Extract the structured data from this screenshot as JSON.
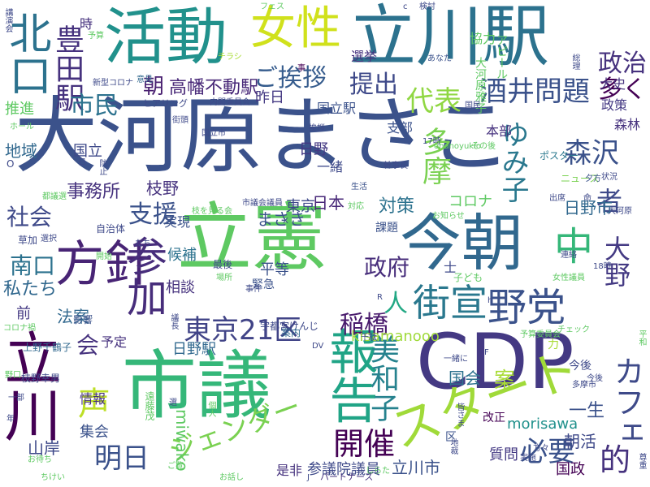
{
  "wordcloud": {
    "words": [
      {
        "text": "大河原まさこ",
        "color": "#3b528b"
      },
      {
        "text": "立憲",
        "color": "#5ec962"
      },
      {
        "text": "市議",
        "color": "#35b779"
      },
      {
        "text": "CDP",
        "color": "#443983"
      },
      {
        "text": "今朝",
        "color": "#31688e"
      },
      {
        "text": "立川駅",
        "color": "#2c728e"
      },
      {
        "text": "活動",
        "color": "#21918c"
      },
      {
        "text": "報告",
        "color": "#20a486"
      },
      {
        "text": "スタート",
        "color": "#a0da39"
      },
      {
        "text": "方針",
        "color": "#482475"
      },
      {
        "text": "立川",
        "color": "#440154"
      },
      {
        "text": "女性",
        "color": "#d0e11c"
      },
      {
        "text": "北口",
        "color": "#2c728e"
      },
      {
        "text": "参加",
        "color": "#472d7b"
      },
      {
        "text": "中",
        "color": "#35b779"
      },
      {
        "text": "野党",
        "color": "#3b528b"
      },
      {
        "text": "街宣",
        "color": "#2a788e"
      },
      {
        "text": "東京21区",
        "color": "#414487"
      },
      {
        "text": "ジェンダー",
        "color": "#7ad151"
      },
      {
        "text": "開催",
        "color": "#440154"
      },
      {
        "text": "必要",
        "color": "#3b528b"
      },
      {
        "text": "美和子",
        "color": "#26828e"
      },
      {
        "text": "声",
        "color": "#bddf26"
      },
      {
        "text": "カフェ",
        "color": "#3e4a89"
      },
      {
        "text": "豊田駅",
        "color": "#46327e"
      },
      {
        "text": "朝",
        "color": "#481f70"
      },
      {
        "text": "高幡不動駅",
        "color": "#482878"
      },
      {
        "text": "ご挨拶",
        "color": "#365c8d"
      },
      {
        "text": "提出",
        "color": "#3e4989"
      },
      {
        "text": "酒井問題",
        "color": "#3b528b"
      },
      {
        "text": "政治",
        "color": "#46327e"
      },
      {
        "text": "多く",
        "color": "#440154"
      },
      {
        "text": "代表",
        "color": "#90d743"
      },
      {
        "text": "市民",
        "color": "#2c728e"
      },
      {
        "text": "森沢",
        "color": "#3b528b"
      },
      {
        "text": "ゆみ子",
        "color": "#2a788e"
      },
      {
        "text": "多摩",
        "color": "#7ad151"
      },
      {
        "text": "大野",
        "color": "#443a83"
      },
      {
        "text": "者",
        "color": "#3e4989"
      },
      {
        "text": "社会",
        "color": "#3e4989"
      },
      {
        "text": "事務所",
        "color": "#46327e"
      },
      {
        "text": "支援",
        "color": "#3b528b"
      },
      {
        "text": "南口",
        "color": "#2c728e"
      },
      {
        "text": "政府",
        "color": "#472d7b"
      },
      {
        "text": "稲橋",
        "color": "#481a6c"
      },
      {
        "text": "人",
        "color": "#22a884"
      },
      {
        "text": "明日",
        "color": "#3b528b"
      },
      {
        "text": "的",
        "color": "#46327e"
      },
      {
        "text": "会",
        "color": "#46327e"
      },
      {
        "text": "miwako",
        "color": "#5ec962"
      },
      {
        "text": "morisawa",
        "color": "#21918c"
      },
      {
        "text": "kisamanooo",
        "color": "#9fda3a"
      },
      {
        "text": "案",
        "color": "#a8db34"
      },
      {
        "text": "まさき",
        "color": "#3b528b"
      },
      {
        "text": "日本",
        "color": "#482878"
      },
      {
        "text": "東京",
        "color": "#3e4989"
      },
      {
        "text": "コロナ",
        "color": "#5ec962"
      },
      {
        "text": "日野市",
        "color": "#31688e"
      },
      {
        "text": "対策",
        "color": "#2c728e"
      },
      {
        "text": "国会",
        "color": "#2c728e"
      },
      {
        "text": "一生",
        "color": "#3b528b"
      },
      {
        "text": "朝活",
        "color": "#3e4989"
      },
      {
        "text": "国政",
        "color": "#440154"
      },
      {
        "text": "立川市",
        "color": "#3b528b"
      },
      {
        "text": "参議院議員",
        "color": "#3e4989"
      },
      {
        "text": "是非",
        "color": "#46327e"
      },
      {
        "text": "質問",
        "color": "#443983"
      },
      {
        "text": "山岸",
        "color": "#3e4989"
      },
      {
        "text": "集会",
        "color": "#3b528b"
      },
      {
        "text": "情報",
        "color": "#46327e"
      },
      {
        "text": "予定",
        "color": "#46327e"
      },
      {
        "text": "法案",
        "color": "#31688e"
      },
      {
        "text": "私たち",
        "color": "#31688e"
      },
      {
        "text": "前",
        "color": "#443983"
      },
      {
        "text": "日野駅",
        "color": "#31688e"
      },
      {
        "text": "平等",
        "color": "#3b528b"
      },
      {
        "text": "相談",
        "color": "#46327e"
      },
      {
        "text": "候補",
        "color": "#2c728e"
      },
      {
        "text": "実現",
        "color": "#3b528b"
      },
      {
        "text": "枝野",
        "color": "#46327e"
      },
      {
        "text": "地域",
        "color": "#31688e"
      },
      {
        "text": "推進",
        "color": "#5ec962"
      },
      {
        "text": "国立",
        "color": "#3e4989"
      },
      {
        "text": "国立駅",
        "color": "#3b528b"
      },
      {
        "text": "昨日",
        "color": "#443983"
      },
      {
        "text": "一緒",
        "color": "#3e4989"
      },
      {
        "text": "日野",
        "color": "#443983"
      },
      {
        "text": "本部",
        "color": "#46327e"
      },
      {
        "text": "支部",
        "color": "#3b528b"
      },
      {
        "text": "大史",
        "color": "#46327e"
      },
      {
        "text": "政策",
        "color": "#443983"
      },
      {
        "text": "森林",
        "color": "#46327e"
      },
      {
        "text": "協力",
        "color": "#5ec962"
      },
      {
        "text": "選挙",
        "color": "#46327e"
      },
      {
        "text": "アピール",
        "color": "#5ec962"
      },
      {
        "text": "大河原雅子",
        "color": "#5ec962"
      },
      {
        "text": "時",
        "color": "#46327e"
      },
      {
        "text": "ポスター",
        "color": "#2a788e"
      },
      {
        "text": "ニュース",
        "color": "#7ad151"
      },
      {
        "text": "宇都宮けんじ",
        "color": "#3e4989"
      },
      {
        "text": "遠藤茂",
        "color": "#5ec962"
      },
      {
        "text": "上野千鶴子",
        "color": "#31688e"
      },
      {
        "text": "枝野幸男",
        "color": "#3e4989"
      },
      {
        "text": "パートナーズ",
        "color": "#46327e"
      },
      {
        "text": "区",
        "color": "#3b528b"
      },
      {
        "text": "改正",
        "color": "#440154"
      },
      {
        "text": "今後",
        "color": "#3e4989"
      },
      {
        "text": "力",
        "color": "#a8db34"
      },
      {
        "text": "士",
        "color": "#3e4989"
      },
      {
        "text": "課題",
        "color": "#3b528b"
      },
      {
        "text": "緊急",
        "color": "#3b528b"
      },
      {
        "text": "子ども",
        "color": "#5ec962"
      },
      {
        "text": "最後",
        "color": "#3e4989"
      },
      {
        "text": "影響",
        "color": "#3b528b"
      },
      {
        "text": "案内",
        "color": "#31688e"
      },
      {
        "text": "自治体",
        "color": "#3e4989"
      },
      {
        "text": "草加",
        "color": "#3e4989"
      },
      {
        "text": "ヒアリング",
        "color": "#3e4989"
      },
      {
        "text": "内閣委員会",
        "color": "#3e4989"
      },
      {
        "text": "新型コロナ",
        "color": "#3e4989"
      },
      {
        "text": "チラシ",
        "color": "#a8db34"
      },
      {
        "text": "意見",
        "color": "#31688e"
      },
      {
        "text": "あなた",
        "color": "#3b528b"
      },
      {
        "text": "検討",
        "color": "#3e4989"
      },
      {
        "text": "フェス",
        "color": "#5ec962"
      },
      {
        "text": "事",
        "color": "#440154"
      },
      {
        "text": "予算",
        "color": "#5ec962"
      },
      {
        "text": "ホール",
        "color": "#5ec962"
      },
      {
        "text": "都議選",
        "color": "#5ec962"
      },
      {
        "text": "防止",
        "color": "#3e4989"
      },
      {
        "text": "国立市",
        "color": "#3e4989"
      },
      {
        "text": "生活",
        "color": "#3b528b"
      },
      {
        "text": "幹事長",
        "color": "#3e4989"
      },
      {
        "text": "挨拶",
        "color": "#3e4989"
      },
      {
        "text": "ohanoyukio",
        "color": "#5ec962"
      },
      {
        "text": "夕方",
        "color": "#3b528b"
      },
      {
        "text": "状況",
        "color": "#3e4989"
      },
      {
        "text": "出席",
        "color": "#3e4989"
      },
      {
        "text": "お知らせ",
        "color": "#5ec962"
      },
      {
        "text": "対応",
        "color": "#5ec962"
      },
      {
        "text": "連絡",
        "color": "#3e4989"
      },
      {
        "text": "18時",
        "color": "#3e4989"
      },
      {
        "text": "女性議員",
        "color": "#5ec962"
      },
      {
        "text": "枝を見る会",
        "color": "#5ec962"
      },
      {
        "text": "市議会議員",
        "color": "#3e4989"
      },
      {
        "text": "たち",
        "color": "#3e4989"
      },
      {
        "text": "選択",
        "color": "#3e4989"
      },
      {
        "text": "開始",
        "color": "#5ec962"
      },
      {
        "text": "事件",
        "color": "#3e4989"
      },
      {
        "text": "場所",
        "color": "#5ec962"
      },
      {
        "text": "コロナ禍",
        "color": "#5ec962"
      },
      {
        "text": "議長",
        "color": "#3e4989"
      },
      {
        "text": "一緒に",
        "color": "#3e4989"
      },
      {
        "text": "予算委員会",
        "color": "#5ec962"
      },
      {
        "text": "平和",
        "color": "#5ec962"
      },
      {
        "text": "今後",
        "color": "#3e4989"
      },
      {
        "text": "多摩市",
        "color": "#3e4989"
      },
      {
        "text": "個人",
        "color": "#5ec962"
      },
      {
        "text": "選",
        "color": "#3e4989"
      },
      {
        "text": "ご覧",
        "color": "#5ec962"
      },
      {
        "text": "お話し",
        "color": "#5ec962"
      },
      {
        "text": "しらた",
        "color": "#5ec962"
      },
      {
        "text": "ちけい",
        "color": "#5ec962"
      },
      {
        "text": "お待ち",
        "color": "#5ec962"
      },
      {
        "text": "一部",
        "color": "#3e4989"
      },
      {
        "text": "野口",
        "color": "#5ec962"
      },
      {
        "text": "DV",
        "color": "#3e4989"
      },
      {
        "text": "総理",
        "color": "#3e4989"
      },
      {
        "text": "講演会",
        "color": "#3e4989"
      },
      {
        "text": "日",
        "color": "#3e4989"
      },
      {
        "text": "O",
        "color": "#3e4989"
      },
      {
        "text": "X",
        "color": "#3e4989"
      },
      {
        "text": "R",
        "color": "#3e4989"
      },
      {
        "text": "F",
        "color": "#3e4989"
      },
      {
        "text": "J",
        "color": "#3e4989"
      },
      {
        "text": "h",
        "color": "#3e4989"
      },
      {
        "text": "c",
        "color": "#3e4989"
      },
      {
        "text": "年",
        "color": "#3e4989"
      },
      {
        "text": "命",
        "color": "#3e4989"
      },
      {
        "text": "千駄",
        "color": "#3e4989"
      },
      {
        "text": "街頭",
        "color": "#3e4989"
      },
      {
        "text": "その後",
        "color": "#5ec962"
      },
      {
        "text": "17時",
        "color": "#3e4989"
      },
      {
        "text": "国民",
        "color": "#3e4989"
      },
      {
        "text": "地裁",
        "color": "#3e4989"
      },
      {
        "text": "方々",
        "color": "#3e4989"
      },
      {
        "text": "実施",
        "color": "#3e4989"
      },
      {
        "text": "尊重",
        "color": "#3e4989"
      },
      {
        "text": "皆さま",
        "color": "#3e4989"
      },
      {
        "text": "チェック",
        "color": "#5ec962"
      },
      {
        "text": "大河原",
        "color": "#3e4989"
      },
      {
        "text": "まさき",
        "color": "#3e4989"
      }
    ]
  }
}
